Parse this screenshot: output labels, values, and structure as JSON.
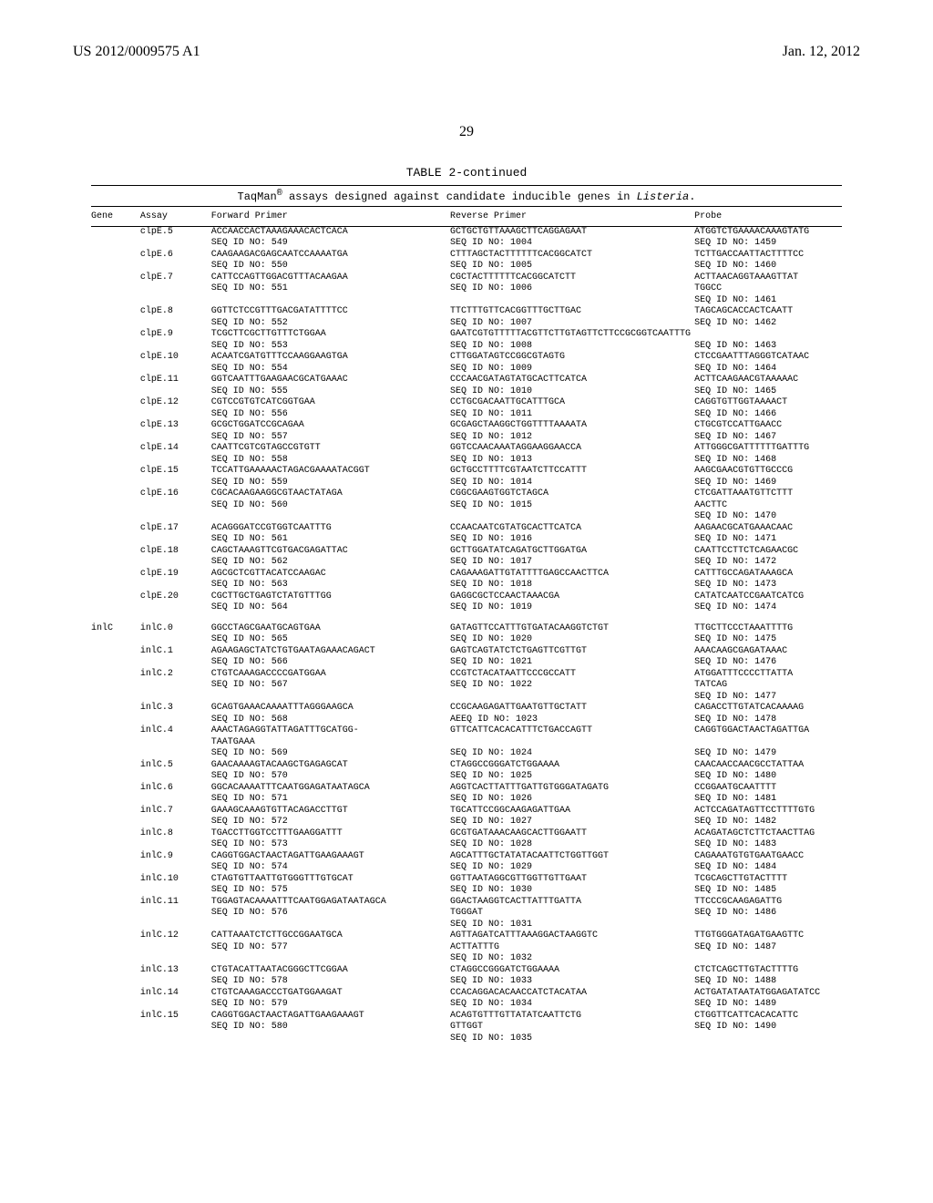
{
  "header": {
    "left": "US 2012/0009575 A1",
    "right": "Jan. 12, 2012"
  },
  "page_number": "29",
  "table": {
    "caption": "TABLE 2-continued",
    "subcaption_prefix": "TaqMan",
    "subcaption_reg": "®",
    "subcaption_mid": " assays designed against candidate inducible genes in ",
    "subcaption_ital": "Listeria",
    "subcaption_suffix": ".",
    "columns": {
      "gene": "Gene",
      "assay": "Assay",
      "fwd": "Forward Primer",
      "rev": "Reverse Primer",
      "probe": "Probe"
    }
  },
  "rows": [
    {
      "gene": "",
      "assay": "clpE.5",
      "fwd": "ACCAACCACTAAAGAAACACTCACA\nSEQ ID NO: 549",
      "rev": "GCTGCTGTTAAAGCTTCAGGAGAAT\nSEQ ID NO: 1004",
      "probe": "ATGGTCTGAAAACAAAGTATG\nSEQ ID NO: 1459"
    },
    {
      "gene": "",
      "assay": "clpE.6",
      "fwd": "CAAGAAGACGAGCAATCCAAAATGA\nSEQ ID NO: 550",
      "rev": "CTTTAGCTACTTTTTTCACGGCATCT\nSEQ ID NO: 1005",
      "probe": "TCTTGACCAATTACTTTTCC\nSEQ ID NO: 1460"
    },
    {
      "gene": "",
      "assay": "clpE.7",
      "fwd": "CATTCCAGTTGGACGTTTACAAGAA\nSEQ ID NO: 551",
      "rev": "CGCTACTTTTTTCACGGCATCTT\nSEQ ID NO: 1006",
      "probe": "ACTTAACAGGTAAAGTTAT\nTGGCC\nSEQ ID NO: 1461"
    },
    {
      "gene": "",
      "assay": "clpE.8",
      "fwd": "GGTTCTCCGTTTGACGATATTTTCC\nSEQ ID NO: 552",
      "rev": "TTCTTTGTTCACGGTTTGCTTGAC\nSEQ ID NO: 1007",
      "probe": "TAGCAGCACCACTCAATT\nSEQ ID NO: 1462"
    },
    {
      "gene": "",
      "assay": "clpE.9",
      "fwd": "TCGCTTCGCTTGTTTCTGGAA\nSEQ ID NO: 553",
      "rev": "GAATCGTGTTTTTACGTTCTTGTAGTTCTTCCGCGGTCAATTTG\nSEQ ID NO: 1008",
      "probe": "\nSEQ ID NO: 1463"
    },
    {
      "gene": "",
      "assay": "clpE.10",
      "fwd": "ACAATCGATGTTTCCAAGGAAGTGA\nSEQ ID NO: 554",
      "rev": "CTTGGATAGTCCGGCGTAGTG\nSEQ ID NO: 1009",
      "probe": "CTCCGAATTTAGGGTCATAAC\nSEQ ID NO: 1464"
    },
    {
      "gene": "",
      "assay": "clpE.11",
      "fwd": "GGTCAATTTGAAGAACGCATGAAAC\nSEQ ID NO: 555",
      "rev": "CCCAACGATAGTATGCACTTCATCA\nSEQ ID NO: 1010",
      "probe": "ACTTCAAGAACGTAAAAAC\nSEQ ID NO: 1465"
    },
    {
      "gene": "",
      "assay": "clpE.12",
      "fwd": "CGTCCGTGTCATCGGTGAA\nSEQ ID NO: 556",
      "rev": "CCTGCGACAATTGCATTTGCA\nSEQ ID NO: 1011",
      "probe": "CAGGTGTTGGTAAAACT\nSEQ ID NO: 1466"
    },
    {
      "gene": "",
      "assay": "clpE.13",
      "fwd": "GCGCTGGATCCGCAGAA\nSEQ ID NO: 557",
      "rev": "GCGAGCTAAGGCTGGTTTTAAAATA\nSEQ ID NO: 1012",
      "probe": "CTGCGTCCATTGAACC\nSEQ ID NO: 1467"
    },
    {
      "gene": "",
      "assay": "clpE.14",
      "fwd": "CAATTCGTCGTAGCCGTGTT\nSEQ ID NO: 558",
      "rev": "GGTCCAACAAATAGGAAGGAACCA\nSEQ ID NO: 1013",
      "probe": "ATTGGGCGATTTTTTGATTTG\nSEQ ID NO: 1468"
    },
    {
      "gene": "",
      "assay": "clpE.15",
      "fwd": "TCCATTGAAAAACTAGACGAAAATACGGT\nSEQ ID NO: 559",
      "rev": "GCTGCCTTTTCGTAATCTTCCATTT\nSEQ ID NO: 1014",
      "probe": "AAGCGAACGTGTTGCCCG\nSEQ ID NO: 1469"
    },
    {
      "gene": "",
      "assay": "clpE.16",
      "fwd": "CGCACAAGAAGGCGTAACTATAGA\nSEQ ID NO: 560",
      "rev": "CGGCGAAGTGGTCTAGCA\nSEQ ID NO: 1015",
      "probe": "CTCGATTAAATGTTCTTT\nAACTTC\nSEQ ID NO: 1470"
    },
    {
      "gene": "",
      "assay": "clpE.17",
      "fwd": "ACAGGGATCCGTGGTCAATTTG\nSEQ ID NO: 561",
      "rev": "CCAACAATCGTATGCACTTCATCA\nSEQ ID NO: 1016",
      "probe": "AAGAACGCATGAAACAAC\nSEQ ID NO: 1471"
    },
    {
      "gene": "",
      "assay": "clpE.18",
      "fwd": "CAGCTAAAGTTCGTGACGAGATTAC\nSEQ ID NO: 562",
      "rev": "GCTTGGATATCAGATGCTTGGATGA\nSEQ ID NO: 1017",
      "probe": "CAATTCCTTCTCAGAACGC\nSEQ ID NO: 1472"
    },
    {
      "gene": "",
      "assay": "clpE.19",
      "fwd": "AGCGCTCGTTACATCCAAGAC\nSEQ ID NO: 563",
      "rev": "CAGAAAGATTGTATTTTGAGCCAACTTCA\nSEQ ID NO: 1018",
      "probe": "CATTTGCCAGATAAAGCA\nSEQ ID NO: 1473"
    },
    {
      "gene": "",
      "assay": "clpE.20",
      "fwd": "CGCTTGCTGAGTCTATGTTTGG\nSEQ ID NO: 564",
      "rev": "GAGGCGCTCCAACTAAACGA\nSEQ ID NO: 1019",
      "probe": "CATATCAATCCGAATCATCG\nSEQ ID NO: 1474"
    },
    {
      "gap": true
    },
    {
      "gene": "inlC",
      "assay": "inlC.0",
      "fwd": "GGCCTAGCGAATGCAGTGAA\nSEQ ID NO: 565",
      "rev": "GATAGTTCCATTTGTGATACAAGGTCTGT\nSEQ ID NO: 1020",
      "probe": "TTGCTTCCCTAAATTTTG\nSEQ ID NO: 1475"
    },
    {
      "gene": "",
      "assay": "inlC.1",
      "fwd": "AGAAGAGCTATCTGTGAATAGAAACAGACT\nSEQ ID NO: 566",
      "rev": "GAGTCAGTATCTCTGAGTTCGTTGT\nSEQ ID NO: 1021",
      "probe": "AAACAAGCGAGATAAAC\nSEQ ID NO: 1476"
    },
    {
      "gene": "",
      "assay": "inlC.2",
      "fwd": "CTGTCAAAGACCCCGATGGAA\nSEQ ID NO: 567",
      "rev": "CCGTCTACATAATTCCCGCCATT\nSEQ ID NO: 1022",
      "probe": "ATGGATTTCCCCTTATTA\nTATCAG\nSEQ ID NO: 1477"
    },
    {
      "gene": "",
      "assay": "inlC.3",
      "fwd": "GCAGTGAAACAAAATTTAGGGAAGCA\nSEQ ID NO: 568",
      "rev": "CCGCAAGAGATTGAATGTTGCTATT\nAEEQ ID NO: 1023",
      "probe": "CAGACCTTGTATCACAAAAG\nSEQ ID NO: 1478"
    },
    {
      "gene": "",
      "assay": "inlC.4",
      "fwd": "AAACTAGAGGTATTAGATTTGCATGG-\nTAATGAAA\nSEQ ID NO: 569",
      "rev": "GTTCATTCACACATTTCTGACCAGTT\n\nSEQ ID NO: 1024",
      "probe": "CAGGTGGACTAACTAGATTGA\n\nSEQ ID NO: 1479"
    },
    {
      "gene": "",
      "assay": "inlC.5",
      "fwd": "GAACAAAAGTACAAGCTGAGAGCAT\nSEQ ID NO: 570",
      "rev": "CTAGGCCGGGATCTGGAAAA\nSEQ ID NO: 1025",
      "probe": "CAACAACCAACGCCTATTAA\nSEQ ID NO: 1480"
    },
    {
      "gene": "",
      "assay": "inlC.6",
      "fwd": "GGCACAAAATTTCAATGGAGATAATAGCA\nSEQ ID NO: 571",
      "rev": "AGGTCACTTATTTGATTGTGGGATAGATG\nSEQ ID NO: 1026",
      "probe": "CCGGAATGCAATTTT\nSEQ ID NO: 1481"
    },
    {
      "gene": "",
      "assay": "inlC.7",
      "fwd": "GAAAGCAAAGTGTTACAGACCTTGT\nSEQ ID NO: 572",
      "rev": "TGCATTCCGGCAAGAGATTGAA\nSEQ ID NO: 1027",
      "probe": "ACTCCAGATAGTTCCTTTTGTG\nSEQ ID NO: 1482"
    },
    {
      "gene": "",
      "assay": "inlC.8",
      "fwd": "TGACCTTGGTCCTTTGAAGGATTT\nSEQ ID NO: 573",
      "rev": "GCGTGATAAACAAGCACTTGGAATT\nSEQ ID NO: 1028",
      "probe": "ACAGATAGCTCTTCTAACTTAG\nSEQ ID NO: 1483"
    },
    {
      "gene": "",
      "assay": "inlC.9",
      "fwd": "CAGGTGGACTAACTAGATTGAAGAAAGT\nSEQ ID NO: 574",
      "rev": "AGCATTTGCTATATACAATTCTGGTTGGT\nSEQ ID NO: 1029",
      "probe": "CAGAAATGTGTGAATGAACC\nSEQ ID NO: 1484"
    },
    {
      "gene": "",
      "assay": "inlC.10",
      "fwd": "CTAGTGTTAATTGTGGGTTTGTGCAT\nSEQ ID NO: 575",
      "rev": "GGTTAATAGGCGTTGGTTGTTGAAT\nSEQ ID NO: 1030",
      "probe": "TCGCAGCTTGTACTTTT\nSEQ ID NO: 1485"
    },
    {
      "gene": "",
      "assay": "inlC.11",
      "fwd": "TGGAGTACAAAATTTCAATGGAGATAATAGCA\nSEQ ID NO: 576",
      "rev": "GGACTAAGGTCACTTATTTGATTA\nTGGGAT\nSEQ ID NO: 1031",
      "probe": "TTCCCGCAAGAGATTG\nSEQ ID NO: 1486"
    },
    {
      "gene": "",
      "assay": "inlC.12",
      "fwd": "CATTAAATCTCTTGCCGGAATGCA\nSEQ ID NO: 577",
      "rev": "AGTTAGATCATTTAAAGGACTAAGGTC\nACTTATTTG\nSEQ ID NO: 1032",
      "probe": "TTGTGGGATAGATGAAGTTC\nSEQ ID NO: 1487"
    },
    {
      "gene": "",
      "assay": "inlC.13",
      "fwd": "CTGTACATTAATACGGGCTTCGGAA\nSEQ ID NO: 578",
      "rev": "CTAGGCCGGGATCTGGAAAA\nSEQ ID NO: 1033",
      "probe": "CTCTCAGCTTGTACTTTTG\nSEQ ID NO: 1488"
    },
    {
      "gene": "",
      "assay": "inlC.14",
      "fwd": "CTGTCAAAGACCCTGATGGAAGAT\nSEQ ID NO: 579",
      "rev": "CCACAGGACACAACCATCTACATAA\nSEQ ID NO: 1034",
      "probe": "ACTGATATAATATGGAGATATCC\nSEQ ID NO: 1489"
    },
    {
      "gene": "",
      "assay": "inlC.15",
      "fwd": "CAGGTGGACTAACTAGATTGAAGAAAGT\nSEQ ID NO: 580",
      "rev": "ACAGTGTTTGTTATATCAATTCTG\nGTTGGT\nSEQ ID NO: 1035",
      "probe": "CTGGTTCATTCACACATTC\nSEQ ID NO: 1490"
    }
  ]
}
